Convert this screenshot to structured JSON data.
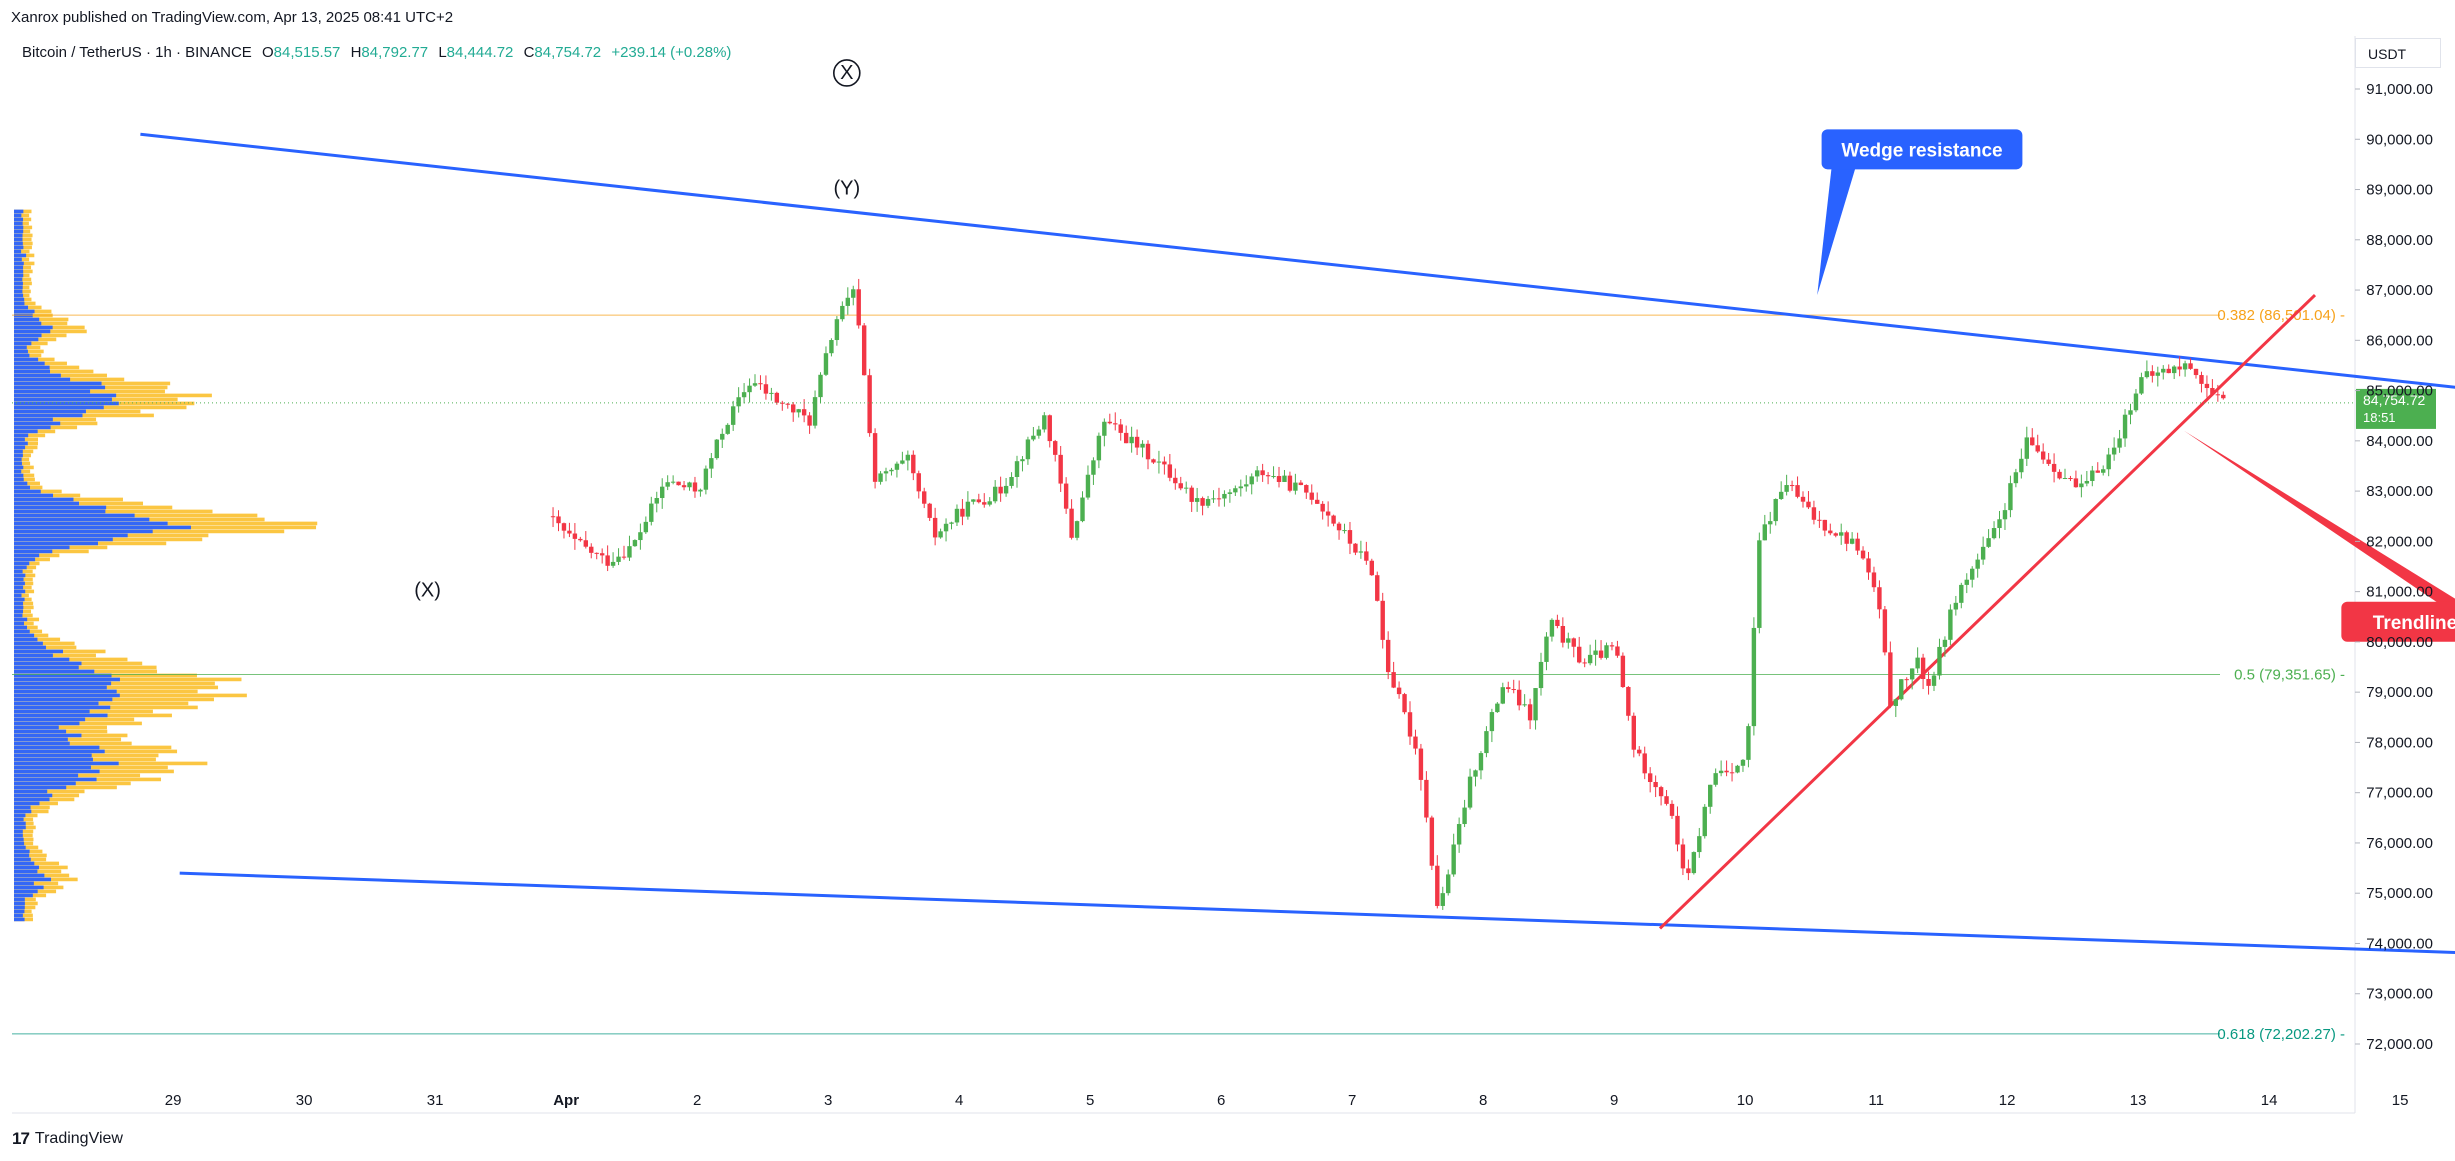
{
  "header": {
    "publisher_line": "Xanrox published on TradingView.com, Apr 13, 2025 08:41 UTC+2",
    "symbol": "Bitcoin / TetherUS · 1h · BINANCE",
    "open_label": "O",
    "open": "84,515.57",
    "high_label": "H",
    "high": "84,792.77",
    "low_label": "L",
    "low": "84,444.72",
    "close_label": "C",
    "close": "84,754.72",
    "change": "+239.14 (+0.28%)"
  },
  "brand": {
    "name": "TradingView",
    "logo_icon": "tradingview-logo-icon"
  },
  "colors": {
    "up": "#4caf50",
    "down": "#f23645",
    "wedge": "#2962ff",
    "trendline": "#f23645",
    "fib_0382": "#f7a21b",
    "fib_05": "#4caf50",
    "fib_0618": "#089981",
    "volume_up": "#fbc02d",
    "volume_down": "#2962ff"
  },
  "chart_data": {
    "type": "candlestick",
    "interval": "1h",
    "y_unit": "USDT",
    "ylim": [
      71200,
      91800
    ],
    "y_ticks": [
      "91,000.00",
      "90,000.00",
      "89,000.00",
      "88,000.00",
      "87,000.00",
      "86,000.00",
      "85,000.00",
      "84,000.00",
      "83,000.00",
      "82,000.00",
      "81,000.00",
      "80,000.00",
      "79,000.00",
      "78,000.00",
      "77,000.00",
      "76,000.00",
      "75,000.00",
      "74,000.00",
      "73,000.00",
      "72,000.00"
    ],
    "x_ticks": [
      "29",
      "30",
      "31",
      "Apr",
      "2",
      "3",
      "4",
      "5",
      "6",
      "7",
      "8",
      "9",
      "10",
      "11",
      "12",
      "13",
      "14",
      "15"
    ],
    "x_tick_days": [
      -2,
      -1,
      0,
      1,
      2,
      3,
      4,
      5,
      6,
      7,
      8,
      9,
      10,
      11,
      12,
      13,
      14,
      15
    ],
    "last_price_label": "84,754.72",
    "countdown": "18:51",
    "price_path": [
      [
        0.55,
        82500
      ],
      [
        0.75,
        82000
      ],
      [
        1.0,
        81600
      ],
      [
        1.2,
        81900
      ],
      [
        1.45,
        83200
      ],
      [
        1.7,
        83000
      ],
      [
        1.9,
        84300
      ],
      [
        2.1,
        85200
      ],
      [
        2.3,
        84800
      ],
      [
        2.55,
        84400
      ],
      [
        2.75,
        86400
      ],
      [
        2.9,
        87000
      ],
      [
        2.97,
        85200
      ],
      [
        3.05,
        83200
      ],
      [
        3.3,
        83600
      ],
      [
        3.5,
        82100
      ],
      [
        3.75,
        82700
      ],
      [
        4.0,
        83000
      ],
      [
        4.35,
        84500
      ],
      [
        4.55,
        82100
      ],
      [
        4.8,
        84400
      ],
      [
        5.2,
        83600
      ],
      [
        5.5,
        82800
      ],
      [
        5.8,
        83000
      ],
      [
        6.0,
        83400
      ],
      [
        6.4,
        82900
      ],
      [
        6.85,
        81400
      ],
      [
        6.95,
        79600
      ],
      [
        7.2,
        77700
      ],
      [
        7.35,
        74600
      ],
      [
        7.6,
        77300
      ],
      [
        7.85,
        79200
      ],
      [
        8.05,
        78500
      ],
      [
        8.2,
        80400
      ],
      [
        8.45,
        79600
      ],
      [
        8.7,
        79900
      ],
      [
        8.85,
        77800
      ],
      [
        9.1,
        76800
      ],
      [
        9.25,
        75200
      ],
      [
        9.45,
        77400
      ],
      [
        9.7,
        77600
      ],
      [
        9.8,
        82000
      ],
      [
        10.0,
        83200
      ],
      [
        10.2,
        82500
      ],
      [
        10.55,
        81900
      ],
      [
        10.7,
        80900
      ],
      [
        10.8,
        78800
      ],
      [
        11.0,
        79600
      ],
      [
        11.1,
        79100
      ],
      [
        11.3,
        80900
      ],
      [
        11.6,
        82200
      ],
      [
        11.85,
        84000
      ],
      [
        12.0,
        83600
      ],
      [
        12.25,
        83000
      ],
      [
        12.5,
        83800
      ],
      [
        12.7,
        85200
      ],
      [
        12.9,
        85400
      ],
      [
        13.1,
        85500
      ],
      [
        13.25,
        84900
      ],
      [
        13.32,
        84755
      ]
    ],
    "levels": [
      {
        "label": "0.382 (86,501.04)",
        "price": 86501.04
      },
      {
        "label": "0.5 (79,351.65)",
        "price": 79351.65
      },
      {
        "label": "0.618 (72,202.27)",
        "price": 72202.27
      }
    ],
    "wedge_resistance": {
      "from": [
        -2.6,
        90100
      ],
      "to": [
        15.3,
        85000
      ]
    },
    "wedge_support": {
      "from": [
        -2.3,
        75400
      ],
      "to": [
        15.3,
        73800
      ]
    },
    "trendline": {
      "from": [
        9.0,
        74300
      ],
      "to": [
        14.0,
        86900
      ]
    },
    "wave_labels": [
      {
        "label": "X",
        "day": 2.8,
        "price": 91200,
        "circled": true
      },
      {
        "label": "(Y)",
        "day": 2.8,
        "price": 88900
      },
      {
        "label": "(X)",
        "day": -0.4,
        "price": 80900
      }
    ],
    "annotations": [
      {
        "text": "Wedge resistance",
        "day": 11.0,
        "price": 89800,
        "pointer_day": 10.2,
        "pointer_price": 86900,
        "color": "#2962ff"
      },
      {
        "text": "Trendline is breaking down!",
        "day": 15.4,
        "price": 80400,
        "pointer_day": 13.0,
        "pointer_price": 84200,
        "color": "#f23645"
      }
    ]
  }
}
